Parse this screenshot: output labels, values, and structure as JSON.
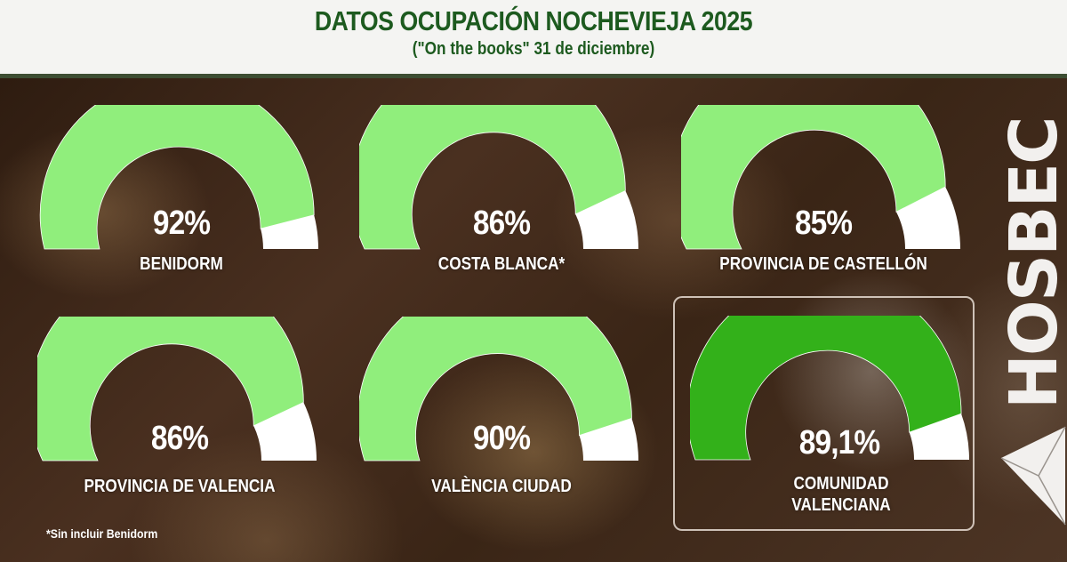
{
  "header": {
    "title": "DATOS OCUPACIÓN NOCHEVIEJA 2025",
    "subtitle": "(\"On the books\" 31 de diciembre)"
  },
  "colors": {
    "title_green": "#1d5a1f",
    "gauge_light_green": "#90ee7c",
    "gauge_dark_green": "#33b11a",
    "gauge_remainder": "#ffffff",
    "header_bar": "#3d4e33"
  },
  "gauges": [
    {
      "value_label": "92%",
      "name": "BENIDORM",
      "value": 92,
      "highlight": false
    },
    {
      "value_label": "86%",
      "name": "COSTA BLANCA*",
      "value": 86,
      "highlight": false
    },
    {
      "value_label": "85%",
      "name": "PROVINCIA DE CASTELLÓN",
      "value": 85,
      "highlight": false
    },
    {
      "value_label": "86%",
      "name": "PROVINCIA DE VALENCIA",
      "value": 86,
      "highlight": false
    },
    {
      "value_label": "90%",
      "name": "VALÈNCIA CIUDAD",
      "value": 90,
      "highlight": false
    },
    {
      "value_label": "89,1%",
      "name_line1": "COMUNIDAD",
      "name_line2": "VALENCIANA",
      "value": 89.1,
      "highlight": true
    }
  ],
  "footnote": "*Sin incluir Benidorm",
  "logo": {
    "text": "HOSBEC"
  },
  "chart_data": {
    "type": "gauge",
    "title": "DATOS OCUPACIÓN NOCHEVIEJA 2025",
    "subtitle": "(\"On the books\" 31 de diciembre)",
    "unit": "%",
    "range": [
      0,
      100
    ],
    "categories": [
      "BENIDORM",
      "COSTA BLANCA*",
      "PROVINCIA DE CASTELLÓN",
      "PROVINCIA DE VALENCIA",
      "VALÈNCIA CIUDAD",
      "COMUNIDAD VALENCIANA"
    ],
    "values": [
      92,
      86,
      85,
      86,
      90,
      89.1
    ],
    "annotations": [
      "*Sin incluir Benidorm"
    ]
  }
}
